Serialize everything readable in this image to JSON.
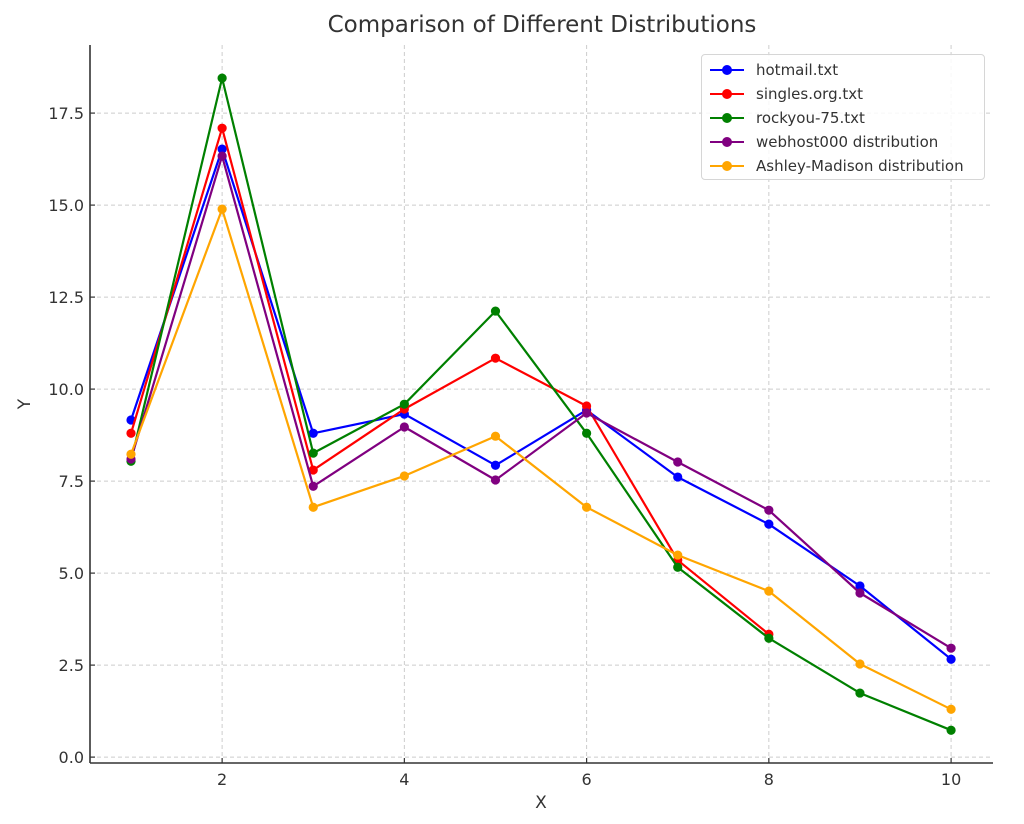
{
  "chart_data": {
    "type": "line",
    "title": "Comparison of Different Distributions",
    "xlabel": "X",
    "ylabel": "Y",
    "xlim": [
      0.55,
      10.46
    ],
    "ylim": [
      -0.16,
      19.35
    ],
    "xticks": [
      2,
      4,
      6,
      8,
      10
    ],
    "xtick_labels": [
      "2",
      "4",
      "6",
      "8",
      "10"
    ],
    "yticks": [
      0,
      2.5,
      5,
      7.5,
      10,
      12.5,
      15,
      17.5
    ],
    "ytick_labels": [
      "0.0",
      "2.5",
      "5.0",
      "7.5",
      "10.0",
      "12.5",
      "15.0",
      "17.5"
    ],
    "grid": true,
    "legend_position": "top-right",
    "series": [
      {
        "name": "hotmail.txt",
        "color": "#0000ff",
        "x": [
          1,
          2,
          3,
          4,
          5,
          6,
          7,
          8,
          9,
          10
        ],
        "values": [
          9.16,
          16.52,
          8.8,
          9.32,
          7.93,
          9.43,
          7.61,
          6.33,
          4.65,
          2.66
        ]
      },
      {
        "name": "singles.org.txt",
        "color": "#ff0000",
        "x": [
          1,
          2,
          3,
          4,
          5,
          6,
          7,
          8
        ],
        "values": [
          8.8,
          17.09,
          7.8,
          9.46,
          10.84,
          9.54,
          5.35,
          3.34
        ]
      },
      {
        "name": "rockyou-75.txt",
        "color": "#008000",
        "x": [
          1,
          2,
          3,
          4,
          5,
          6,
          7,
          8,
          9,
          10
        ],
        "values": [
          8.04,
          18.45,
          8.26,
          9.59,
          12.12,
          8.8,
          5.16,
          3.23,
          1.74,
          0.73
        ]
      },
      {
        "name": "webhost000 distribution",
        "color": "#800080",
        "x": [
          1,
          2,
          3,
          4,
          5,
          6,
          7,
          8,
          9,
          10
        ],
        "values": [
          8.1,
          16.33,
          7.36,
          8.97,
          7.53,
          9.35,
          8.02,
          6.71,
          4.46,
          2.96
        ]
      },
      {
        "name": "Ashley-Madison distribution",
        "color": "#ffa500",
        "x": [
          1,
          2,
          3,
          4,
          5,
          6,
          7,
          8,
          9,
          10
        ],
        "values": [
          8.23,
          14.89,
          6.79,
          7.64,
          8.72,
          6.79,
          5.49,
          4.51,
          2.53,
          1.3
        ]
      }
    ]
  }
}
